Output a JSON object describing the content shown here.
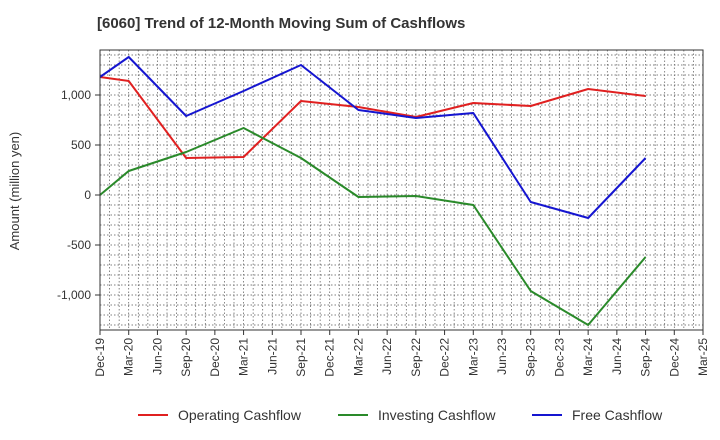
{
  "chart_data": {
    "type": "line",
    "title": "[6060]  Trend of 12-Month Moving Sum of Cashflows",
    "xlabel": "",
    "ylabel": "Amount (million yen)",
    "x": [
      "Dec-19",
      "Mar-20",
      "Jun-20",
      "Sep-20",
      "Dec-20",
      "Mar-21",
      "Jun-21",
      "Sep-21",
      "Dec-21",
      "Mar-22",
      "Jun-22",
      "Sep-22",
      "Dec-22",
      "Mar-23",
      "Jun-23",
      "Sep-23",
      "Dec-23",
      "Mar-24",
      "Jun-24",
      "Sep-24",
      "Dec-24",
      "Mar-25"
    ],
    "ylim": [
      -1350,
      1450
    ],
    "yticks": [
      -1000,
      -500,
      0,
      500,
      1000
    ],
    "ytick_labels": [
      "-1,000",
      "-500",
      "0",
      "500",
      "1,000"
    ],
    "grid": true,
    "legend_position": "bottom",
    "series": [
      {
        "name": "Operating Cashflow",
        "color": "#e02020",
        "values": [
          1180,
          1140,
          null,
          370,
          null,
          380,
          null,
          940,
          null,
          880,
          null,
          780,
          null,
          920,
          null,
          890,
          null,
          1060,
          null,
          990,
          null,
          null
        ]
      },
      {
        "name": "Investing Cashflow",
        "color": "#2a8a2a",
        "values": [
          0,
          240,
          null,
          430,
          null,
          670,
          null,
          370,
          null,
          -20,
          null,
          -10,
          null,
          -100,
          null,
          -960,
          null,
          -1300,
          null,
          -620,
          null,
          null
        ]
      },
      {
        "name": "Free Cashflow",
        "color": "#1515d0",
        "values": [
          1180,
          1380,
          null,
          790,
          null,
          1040,
          null,
          1300,
          null,
          850,
          null,
          770,
          null,
          820,
          null,
          -70,
          null,
          -230,
          null,
          370,
          null,
          null
        ]
      }
    ]
  }
}
